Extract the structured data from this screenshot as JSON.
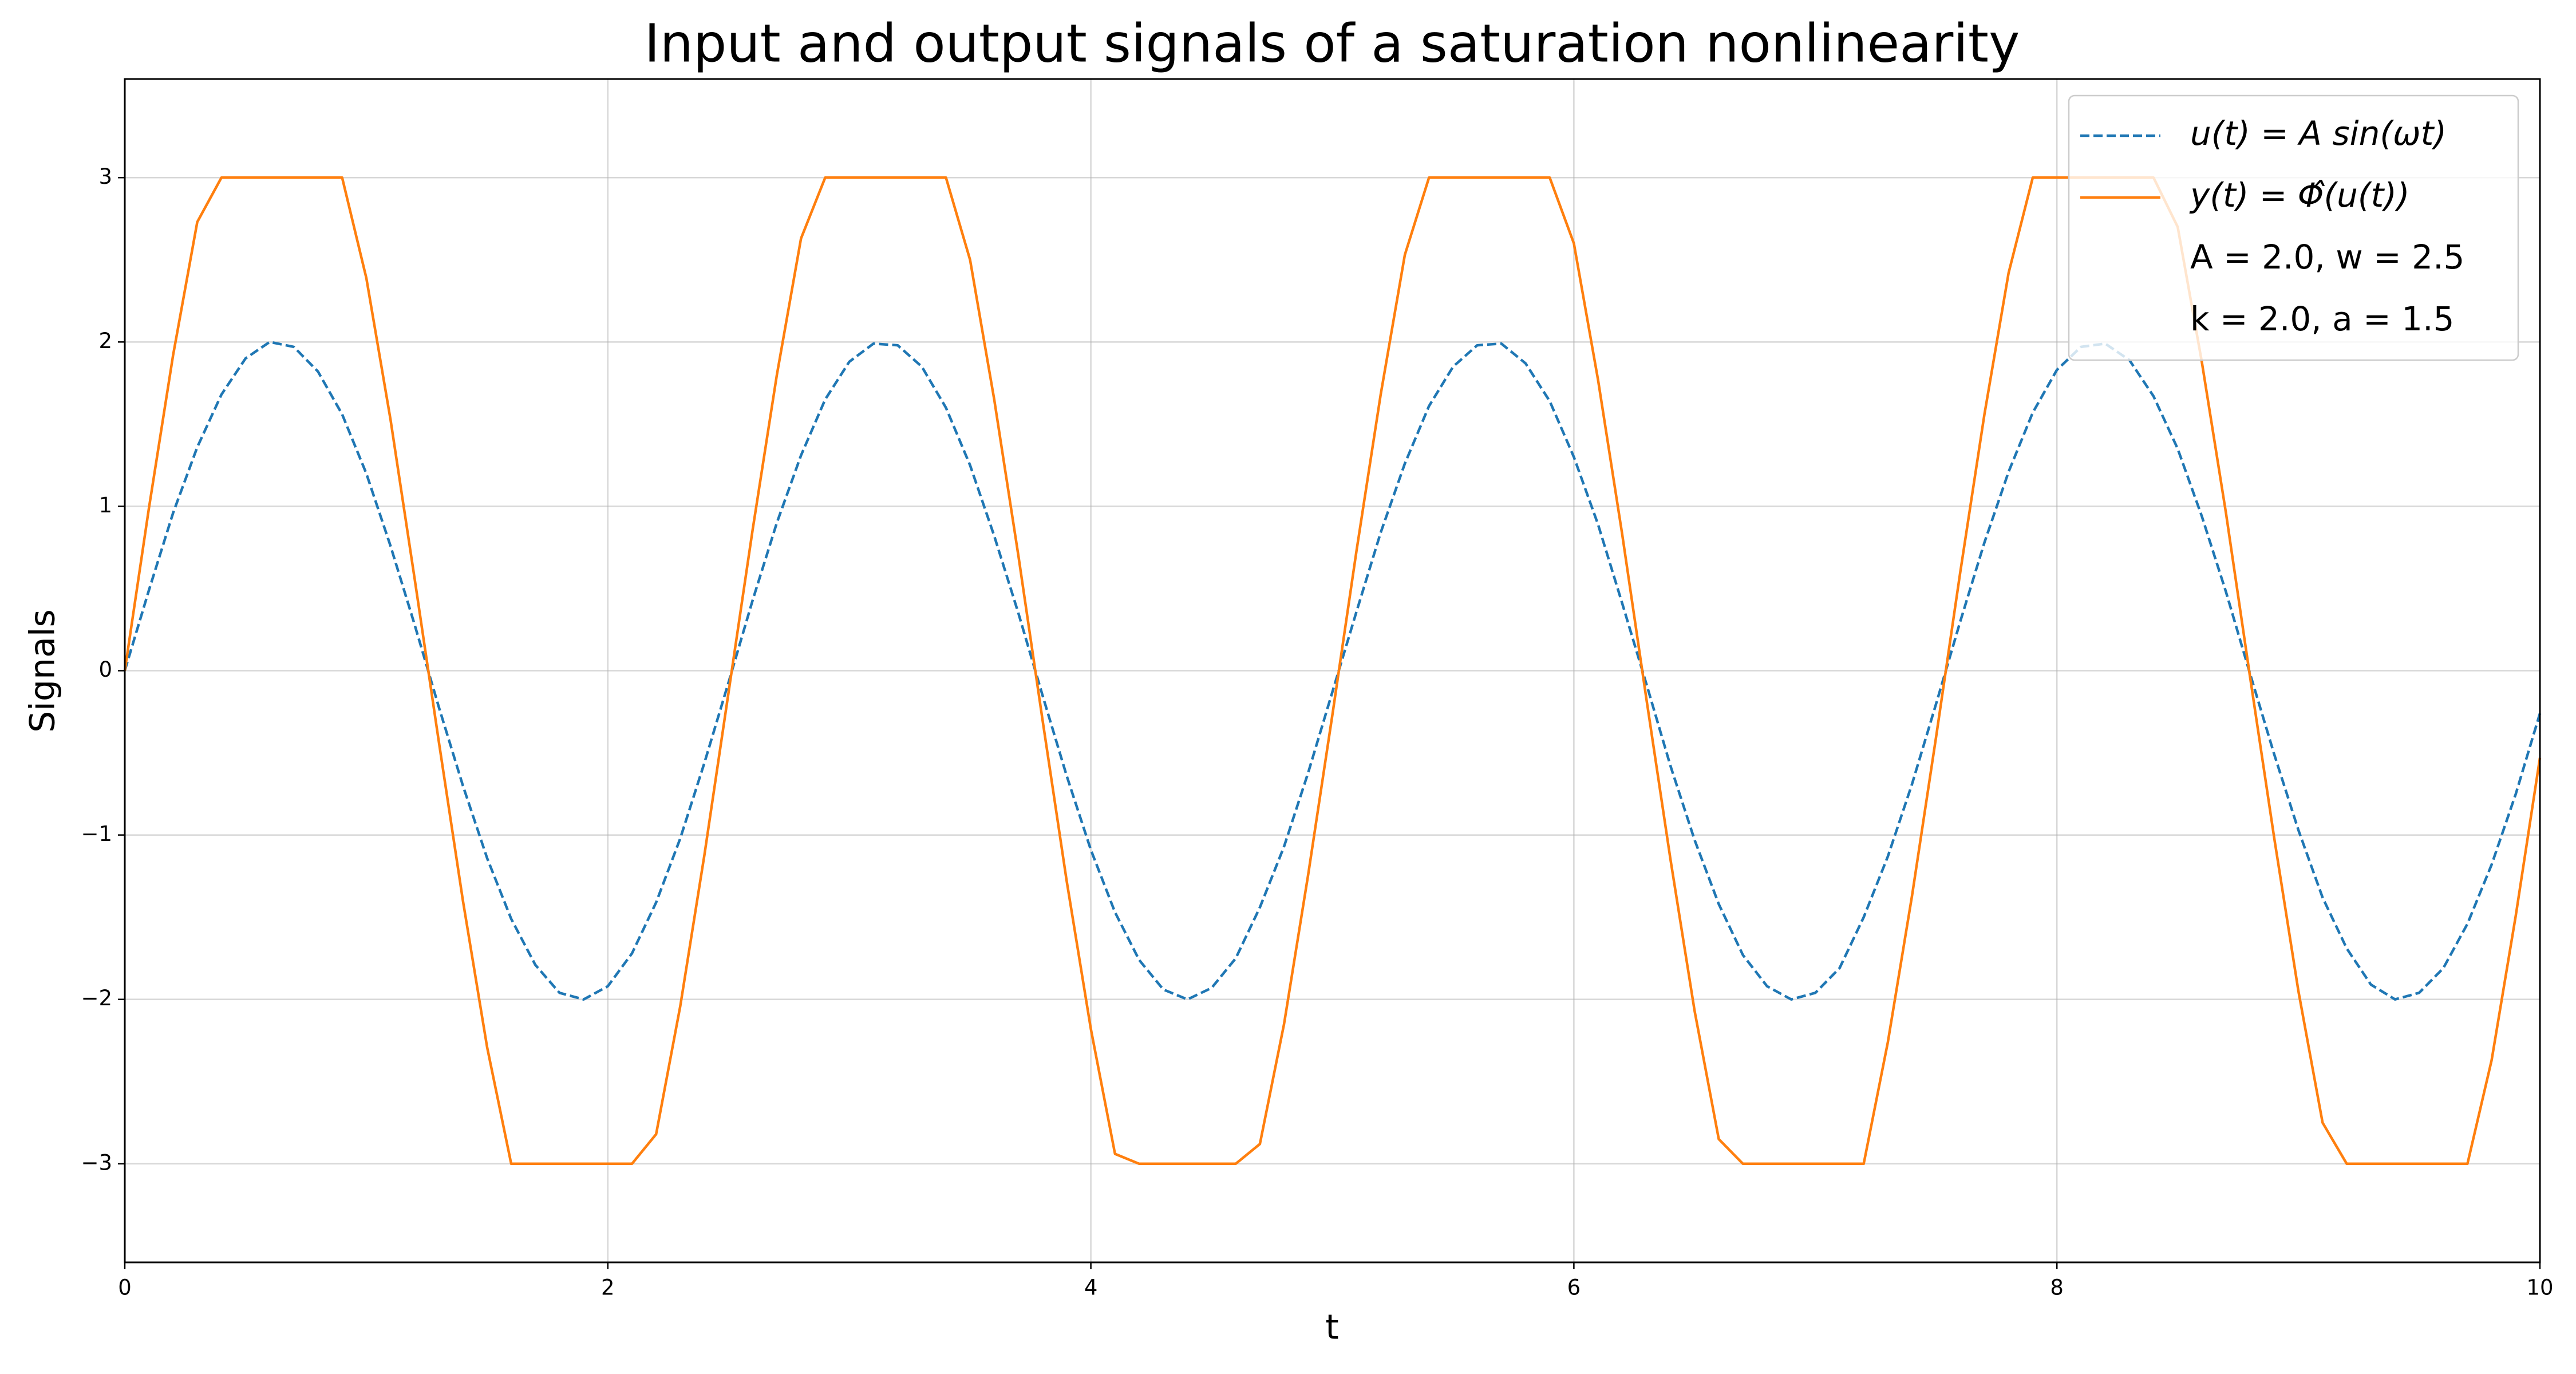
{
  "chart_data": {
    "type": "line",
    "title": "Input and output signals of a saturation nonlinearity",
    "xlabel": "t",
    "ylabel": "Signals",
    "x": [
      0,
      0.1,
      0.2,
      0.3,
      0.4,
      0.5,
      0.6,
      0.7,
      0.8,
      0.9,
      1,
      1.1,
      1.2,
      1.3,
      1.4,
      1.5,
      1.6,
      1.7,
      1.8,
      1.9,
      2,
      2.1,
      2.2,
      2.3,
      2.4,
      2.5,
      2.6,
      2.7,
      2.8,
      2.9,
      3,
      3.1,
      3.2,
      3.3,
      3.4,
      3.5,
      3.6,
      3.7,
      3.8,
      3.9,
      4,
      4.1,
      4.2,
      4.3,
      4.4,
      4.5,
      4.6,
      4.7,
      4.8,
      4.9,
      5,
      5.1,
      5.2,
      5.3,
      5.4,
      5.5,
      5.6,
      5.7,
      5.8,
      5.9,
      6,
      6.1,
      6.2,
      6.3,
      6.4,
      6.5,
      6.6,
      6.7,
      6.8,
      6.9,
      7,
      7.1,
      7.2,
      7.3,
      7.4,
      7.5,
      7.6,
      7.7,
      7.8,
      7.9,
      8,
      8.1,
      8.2,
      8.3,
      8.4,
      8.5,
      8.6,
      8.7,
      8.8,
      8.9,
      9,
      9.1,
      9.2,
      9.3,
      9.4,
      9.5,
      9.6,
      9.7,
      9.8,
      9.9,
      10
    ],
    "series": [
      {
        "name": "u(t) = A sin(ωt)",
        "color": "#1f77b4",
        "linestyle": "dashed",
        "values": [
          0,
          0.49,
          0.96,
          1.36,
          1.68,
          1.9,
          2,
          1.97,
          1.82,
          1.56,
          1.2,
          0.76,
          0.28,
          -0.22,
          -0.7,
          -1.14,
          -1.51,
          -1.79,
          -1.96,
          -2,
          -1.92,
          -1.72,
          -1.41,
          -1.02,
          -0.56,
          -0.07,
          0.43,
          0.9,
          1.31,
          1.65,
          1.88,
          1.99,
          1.98,
          1.85,
          1.6,
          1.25,
          0.82,
          0.35,
          -0.15,
          -0.64,
          -1.09,
          -1.47,
          -1.76,
          -1.94,
          -2,
          -1.93,
          -1.75,
          -1.44,
          -1.07,
          -0.62,
          -0.13,
          0.36,
          0.84,
          1.26,
          1.61,
          1.85,
          1.98,
          1.99,
          1.87,
          1.64,
          1.3,
          0.89,
          0.41,
          -0.08,
          -0.58,
          -1.03,
          -1.42,
          -1.73,
          -1.92,
          -2,
          -1.96,
          -1.81,
          -1.5,
          -1.13,
          -0.69,
          -0.2,
          0.3,
          0.78,
          1.21,
          1.57,
          1.83,
          1.97,
          1.99,
          1.89,
          1.67,
          1.35,
          0.94,
          0.48,
          -0.02,
          -0.51,
          -0.97,
          -1.38,
          -1.69,
          -1.91,
          -2,
          -1.96,
          -1.81,
          -1.54,
          -1.18,
          -0.75,
          -0.26
        ]
      },
      {
        "name": "y(t) = Φ̂(u(t))",
        "color": "#ff7f0e",
        "linestyle": "solid",
        "values": [
          0,
          0.99,
          1.92,
          2.73,
          3,
          3,
          3,
          3,
          3,
          3,
          2.39,
          1.53,
          0.56,
          -0.43,
          -1.4,
          -2.29,
          -3,
          -3,
          -3,
          -3,
          -3,
          -3,
          -2.82,
          -2.04,
          -1.12,
          -0.13,
          0.86,
          1.8,
          2.63,
          3,
          3,
          3,
          3,
          3,
          3,
          2.5,
          1.65,
          0.7,
          -0.3,
          -1.28,
          -2.18,
          -2.94,
          -3,
          -3,
          -3,
          -3,
          -3,
          -2.88,
          -2.15,
          -1.24,
          -0.27,
          0.73,
          1.68,
          2.53,
          3,
          3,
          3,
          3,
          3,
          3,
          2.6,
          1.77,
          0.83,
          -0.17,
          -1.15,
          -2.07,
          -2.85,
          -3,
          -3,
          -3,
          -3,
          -3,
          -3,
          -2.26,
          -1.37,
          -0.4,
          0.6,
          1.56,
          2.42,
          3,
          3,
          3,
          3,
          3,
          3,
          2.7,
          1.88,
          0.96,
          -0.04,
          -1.02,
          -1.95,
          -2.75,
          -3,
          -3,
          -3,
          -3,
          -3,
          -3,
          -2.37,
          -1.49,
          -0.53
        ]
      }
    ],
    "legend_notes": [
      "A = 2.0, w = 2.5",
      "k = 2.0, a = 1.5"
    ],
    "legend": "upper right",
    "xlim": [
      0,
      10
    ],
    "xticks": [
      0,
      2,
      4,
      6,
      8,
      10
    ],
    "ylim": [
      -3.6,
      3.6
    ],
    "yticks": [
      {
        "value": -3,
        "label": "−3"
      },
      {
        "value": -2,
        "label": "−2"
      },
      {
        "value": -1,
        "label": "−1"
      },
      0,
      1,
      2,
      3
    ],
    "grid": true
  }
}
